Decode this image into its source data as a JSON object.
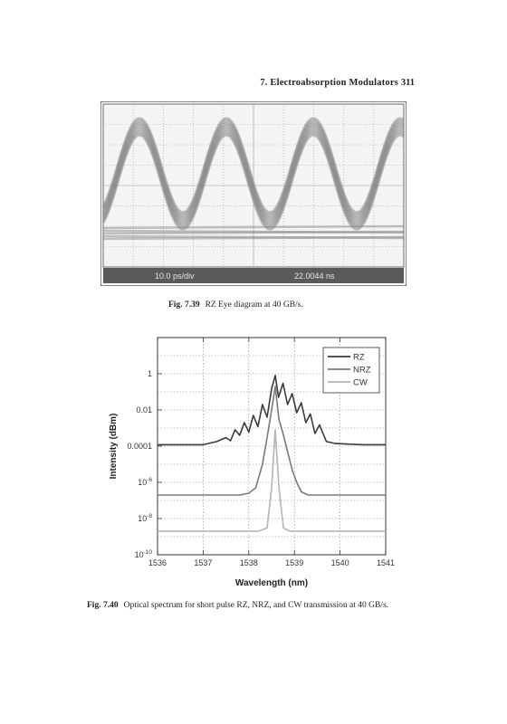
{
  "header": {
    "title": "7.  Electroabsorption Modulators",
    "page_number": "311"
  },
  "figure_7_39": {
    "number": "Fig. 7.39",
    "caption": "RZ Eye diagram at 40 GB/s.",
    "time_scale_label": "10.0 ps/div",
    "time_offset_label": "22.0044 ns",
    "trace_color": "#8a8a8a"
  },
  "figure_7_40": {
    "number": "Fig. 7.40",
    "caption": "Optical spectrum for short pulse RZ, NRZ, and CW transmission at 40 GB/s."
  },
  "chart_data": {
    "type": "line",
    "xlabel": "Wavelength (nm)",
    "ylabel": "Intensity (dBm)",
    "xlim": [
      1536,
      1541
    ],
    "x_ticks": [
      1536,
      1537,
      1538,
      1539,
      1540,
      1541
    ],
    "y_scale": "log",
    "ylim": [
      1e-10,
      100
    ],
    "y_ticks": [
      {
        "value": 1,
        "label": "1"
      },
      {
        "value": 0.01,
        "label": "0.01"
      },
      {
        "value": 0.0001,
        "label": "0.0001"
      },
      {
        "value": 1e-06,
        "base": "10",
        "exp": "-6"
      },
      {
        "value": 1e-08,
        "base": "10",
        "exp": "-8"
      },
      {
        "value": 1e-10,
        "base": "10",
        "exp": "-10"
      }
    ],
    "grid": true,
    "legend_position": "top-right",
    "series": [
      {
        "name": "RZ",
        "color": "#3a3a3a",
        "x": [
          1536.0,
          1537.0,
          1537.3,
          1537.5,
          1537.6,
          1537.7,
          1537.8,
          1537.9,
          1538.0,
          1538.1,
          1538.2,
          1538.3,
          1538.4,
          1538.5,
          1538.58,
          1538.65,
          1538.75,
          1538.85,
          1538.95,
          1539.05,
          1539.15,
          1539.25,
          1539.35,
          1539.45,
          1539.55,
          1539.7,
          1539.9,
          1540.5,
          1541.0
        ],
        "y": [
          0.00012,
          0.00012,
          0.00018,
          0.0003,
          0.0002,
          0.0008,
          0.0004,
          0.002,
          0.0006,
          0.005,
          0.0012,
          0.02,
          0.004,
          0.15,
          0.8,
          0.05,
          0.3,
          0.02,
          0.08,
          0.007,
          0.025,
          0.002,
          0.006,
          0.0005,
          0.0015,
          0.00018,
          0.00014,
          0.00012,
          0.00012
        ]
      },
      {
        "name": "NRZ",
        "color": "#7a7a7a",
        "x": [
          1536.0,
          1537.8,
          1538.0,
          1538.15,
          1538.3,
          1538.4,
          1538.5,
          1538.58,
          1538.66,
          1538.75,
          1538.85,
          1538.95,
          1539.05,
          1539.15,
          1539.3,
          1541.0
        ],
        "y": [
          2e-07,
          2e-07,
          2.5e-07,
          5e-07,
          1e-05,
          0.0003,
          0.01,
          0.2,
          0.003,
          0.0005,
          5e-05,
          5e-06,
          1e-06,
          3e-07,
          2e-07,
          2e-07
        ]
      },
      {
        "name": "CW",
        "color": "#b4b4b4",
        "x": [
          1536.0,
          1538.2,
          1538.4,
          1538.5,
          1538.58,
          1538.66,
          1538.76,
          1538.9,
          1541.0
        ],
        "y": [
          2e-09,
          2e-09,
          3e-09,
          5e-07,
          0.0008,
          5e-07,
          3e-09,
          2e-09,
          2e-09
        ]
      }
    ]
  }
}
